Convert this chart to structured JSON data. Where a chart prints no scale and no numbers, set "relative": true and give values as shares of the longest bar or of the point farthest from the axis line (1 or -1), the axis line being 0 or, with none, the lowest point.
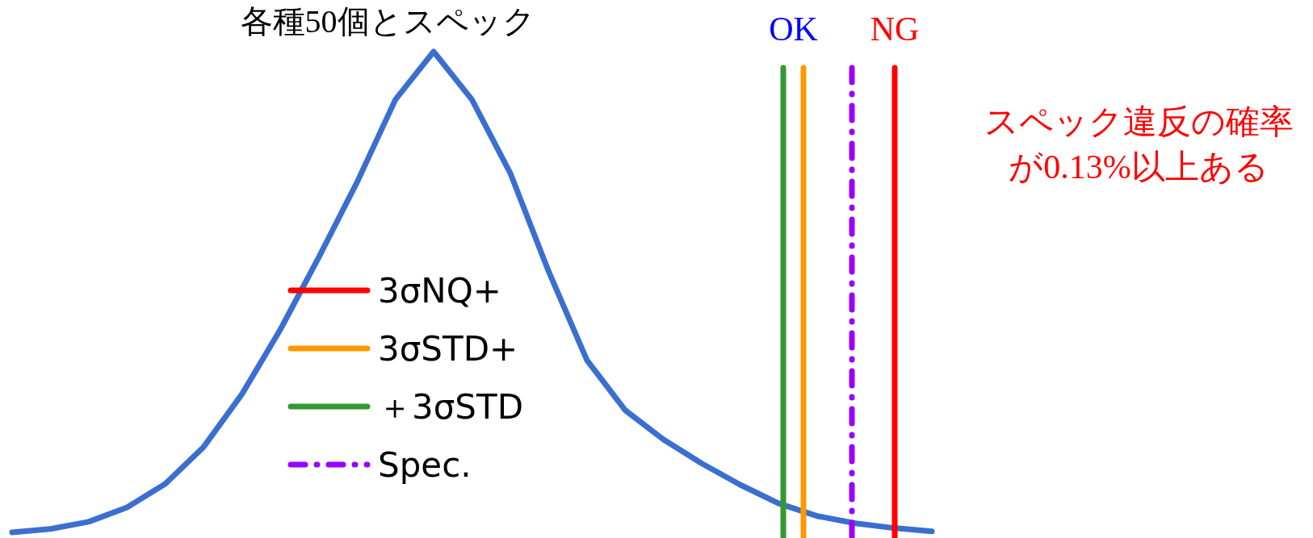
{
  "chart_data": {
    "type": "line",
    "relative": true,
    "title": "各種50個とスペック",
    "categories": [
      null,
      null,
      null,
      null,
      null,
      null,
      null,
      null,
      null,
      null,
      null,
      null,
      null,
      null,
      null,
      null,
      null,
      null,
      null,
      null,
      null,
      null,
      null,
      null,
      null
    ],
    "series": [
      {
        "color": "#3a6fd0",
        "values": [
          0,
          0.007,
          0.022,
          0.052,
          0.101,
          0.178,
          0.288,
          0.422,
          0.572,
          0.728,
          0.9,
          1,
          0.9,
          0.747,
          0.543,
          0.358,
          0.254,
          0.193,
          0.143,
          0.099,
          0.06,
          0.034,
          0.019,
          0.009,
          0.002
        ]
      }
    ],
    "ref_lines": [
      {
        "axis": "x",
        "label": "3σNQ+",
        "color": "#ff0000",
        "line_style": "solid"
      },
      {
        "axis": "x",
        "label": "3σSTD+",
        "color": "#ff9900",
        "line_style": "solid"
      },
      {
        "axis": "x",
        "label": "＋3σSTD",
        "color": "#339933",
        "line_style": "solid"
      },
      {
        "axis": "x",
        "label": "Spec.",
        "color": "#9900ff",
        "line_style": "dashdot"
      }
    ],
    "annotations": [
      "OK",
      "NG",
      "スペック違反の確率が0.13%以上ある"
    ]
  }
}
